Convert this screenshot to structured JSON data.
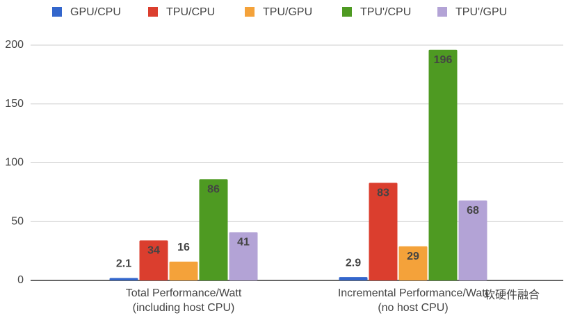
{
  "chart_data": {
    "type": "bar",
    "categories": [
      "Total Performance/Watt\n(including host CPU)",
      "Incremental Performance/Watt\n(no host CPU)"
    ],
    "series": [
      {
        "name": "GPU/CPU",
        "color": "#3366cc",
        "values": [
          2.1,
          2.9
        ]
      },
      {
        "name": "TPU/CPU",
        "color": "#db3e2e",
        "values": [
          34,
          83
        ]
      },
      {
        "name": "TPU/GPU",
        "color": "#f4a23a",
        "values": [
          16,
          29
        ]
      },
      {
        "name": "TPU'/CPU",
        "color": "#4e9a22",
        "values": [
          86,
          196
        ]
      },
      {
        "name": "TPU'/GPU",
        "color": "#b3a3d6",
        "values": [
          41,
          68
        ]
      }
    ],
    "ylim": [
      0,
      200
    ],
    "yticks": [
      0,
      50,
      100,
      150,
      200
    ],
    "grid": true,
    "legend": "top",
    "watermark": "软硬件融合"
  }
}
